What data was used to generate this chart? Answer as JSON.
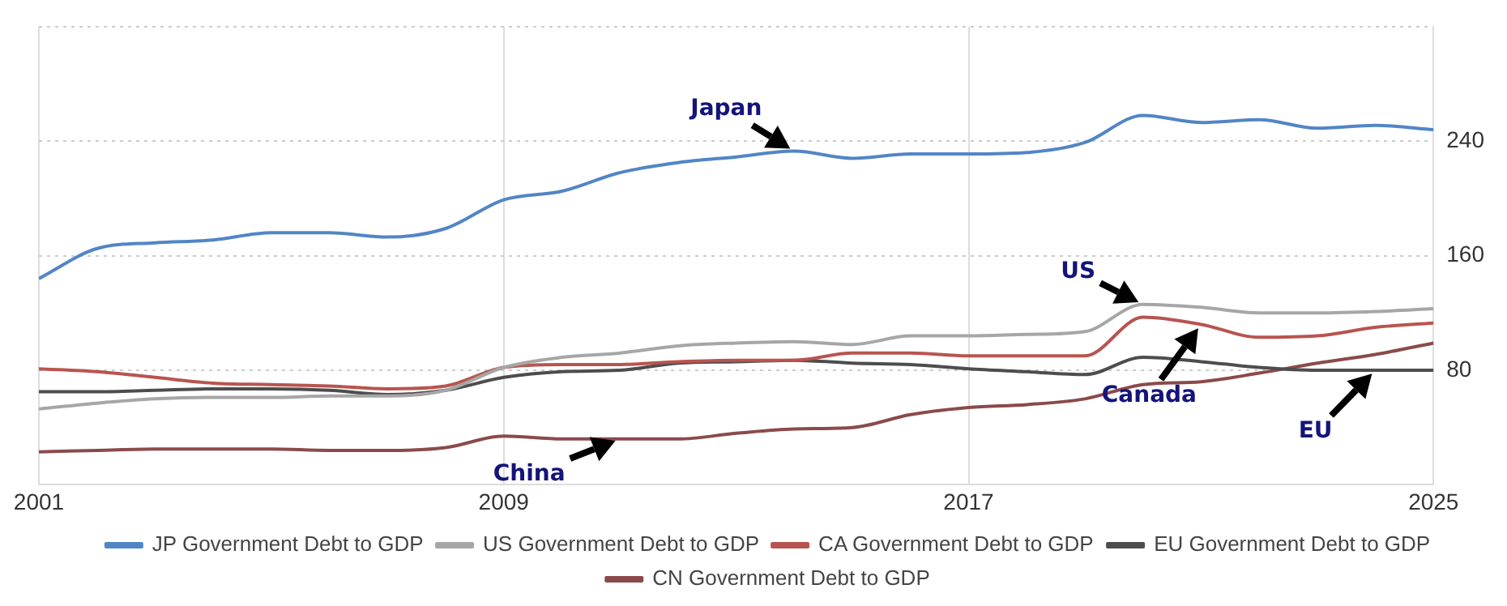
{
  "chart_data": {
    "type": "line",
    "x": [
      2001,
      2002,
      2003,
      2004,
      2005,
      2006,
      2007,
      2008,
      2009,
      2010,
      2011,
      2012,
      2013,
      2014,
      2015,
      2016,
      2017,
      2018,
      2019,
      2020,
      2021,
      2022,
      2023,
      2024,
      2025
    ],
    "series": [
      {
        "name": "JP Government Debt to GDP",
        "color": "#5285c6",
        "values": [
          144,
          165,
          169,
          171,
          176,
          176,
          173,
          179,
          199,
          205,
          218,
          225,
          229,
          233,
          228,
          231,
          231,
          232,
          239,
          258,
          253,
          255,
          249,
          251,
          248
        ]
      },
      {
        "name": "US Government Debt to GDP",
        "color": "#a6a6a6",
        "values": [
          53,
          57,
          60,
          61,
          61,
          62,
          62,
          66,
          82,
          89,
          92,
          97,
          99,
          100,
          98,
          104,
          104,
          105,
          107,
          126,
          124,
          120,
          120,
          121,
          123
        ]
      },
      {
        "name": "CA Government Debt to GDP",
        "color": "#b85450",
        "values": [
          81,
          79,
          75,
          71,
          70,
          69,
          67,
          69,
          82,
          84,
          84,
          86,
          87,
          87,
          92,
          92,
          90,
          90,
          90,
          117,
          112,
          103,
          104,
          110,
          113
        ]
      },
      {
        "name": "EU Government Debt to GDP",
        "color": "#4d4d4d",
        "values": [
          65,
          65,
          66,
          67,
          67,
          66,
          63,
          66,
          75,
          79,
          80,
          85,
          86,
          87,
          85,
          84,
          81,
          79,
          77,
          89,
          86,
          82,
          80,
          80,
          80
        ]
      },
      {
        "name": "CN Government Debt to GDP",
        "color": "#8b4a4a",
        "values": [
          23,
          24,
          25,
          25,
          25,
          24,
          24,
          26,
          34,
          32,
          32,
          32,
          36,
          39,
          40,
          49,
          54,
          56,
          60,
          70,
          72,
          78,
          85,
          91,
          99
        ]
      }
    ],
    "xlim": [
      2001,
      2025
    ],
    "xticks": [
      2001,
      2009,
      2017,
      2025
    ],
    "ylim": [
      0,
      320
    ],
    "yticks": [
      {
        "value": 0,
        "label": null
      },
      80,
      160,
      240,
      {
        "value": 320,
        "label": null
      }
    ],
    "grid": true,
    "legend": "bottom",
    "marker": "none",
    "line_style": "solid",
    "annotations": [
      {
        "text": "Japan",
        "x": 2014,
        "y": 233
      },
      {
        "text": "US",
        "x": 2020,
        "y": 126
      },
      {
        "text": "Canada",
        "x": 2021,
        "y": 112
      },
      {
        "text": "EU",
        "x": 2024,
        "y": 80
      },
      {
        "text": "China",
        "x": 2011,
        "y": 32
      }
    ]
  }
}
